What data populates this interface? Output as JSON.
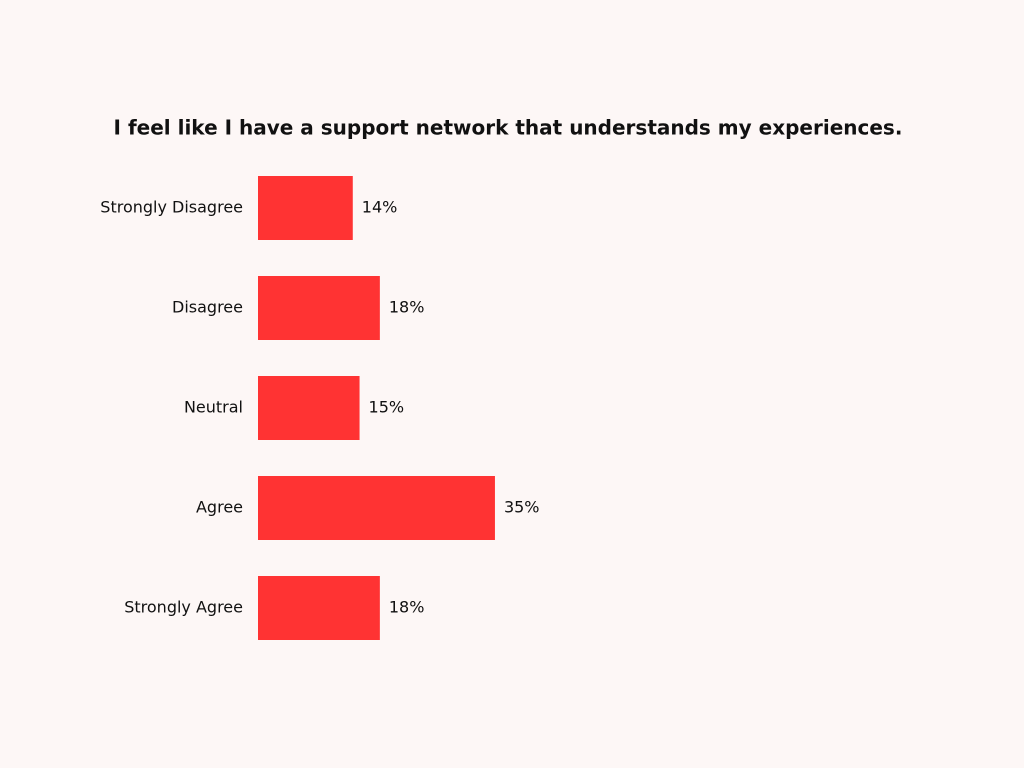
{
  "chart_data": {
    "type": "barh",
    "title": "I feel like I have a support network that understands my experiences.",
    "categories": [
      "Strongly Disagree",
      "Disagree",
      "Neutral",
      "Agree",
      "Strongly Agree"
    ],
    "values": [
      14,
      18,
      15,
      35,
      18
    ],
    "value_labels": [
      "14%",
      "18%",
      "15%",
      "35%",
      "18%"
    ],
    "color": "#ff3333"
  }
}
